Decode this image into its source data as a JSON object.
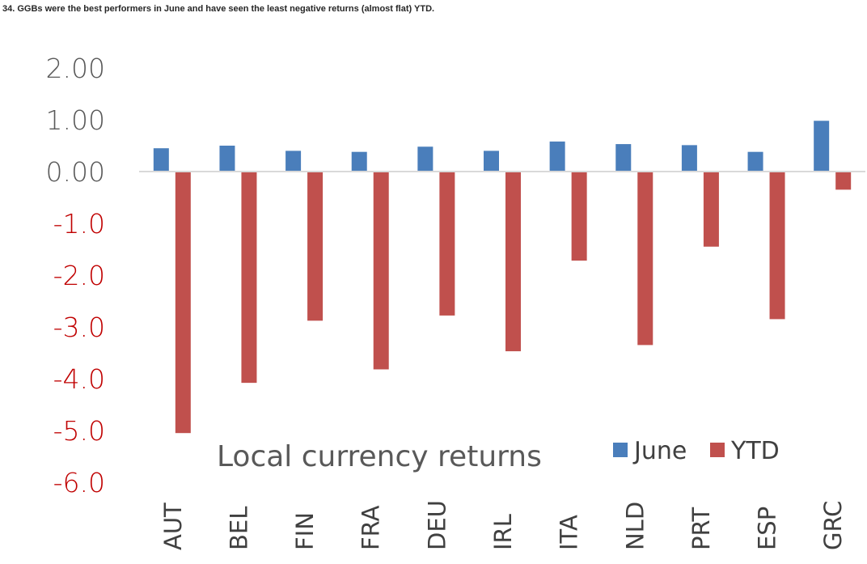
{
  "caption": "34. GGBs were the best performers in June and have seen the least negative returns (almost flat) YTD.",
  "chart_data": {
    "type": "bar",
    "title": "Local currency returns",
    "categories": [
      "AUT",
      "BEL",
      "FIN",
      "FRA",
      "DEU",
      "IRL",
      "ITA",
      "NLD",
      "PRT",
      "ESP",
      "GRC"
    ],
    "series": [
      {
        "name": "June",
        "color": "#4a7ebb",
        "values": [
          0.45,
          0.5,
          0.4,
          0.38,
          0.48,
          0.4,
          0.58,
          0.53,
          0.51,
          0.38,
          0.98
        ]
      },
      {
        "name": "YTD",
        "color": "#c0504d",
        "values": [
          -5.05,
          -4.08,
          -2.88,
          -3.82,
          -2.78,
          -3.47,
          -1.72,
          -3.35,
          -1.45,
          -2.85,
          -0.35
        ]
      }
    ],
    "ylim": [
      -6.0,
      2.0
    ],
    "yticks": [
      {
        "value": 2,
        "label": "2.00"
      },
      {
        "value": 1,
        "label": "1.00"
      },
      {
        "value": 0,
        "label": "0.00"
      },
      {
        "value": -1,
        "label": "-1.0"
      },
      {
        "value": -2,
        "label": "-2.0"
      },
      {
        "value": -3,
        "label": "-3.0"
      },
      {
        "value": -4,
        "label": "-4.0"
      },
      {
        "value": -5,
        "label": "-5.0"
      },
      {
        "value": -6,
        "label": "-6.0"
      }
    ],
    "grid": false,
    "legend": "bottom-right"
  }
}
